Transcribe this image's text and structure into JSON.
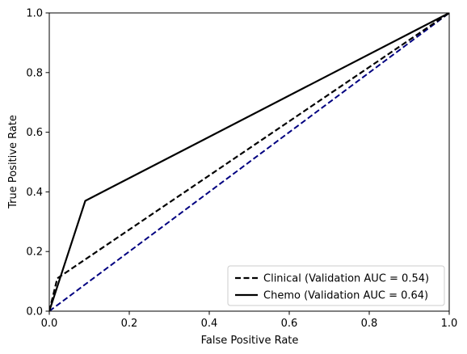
{
  "chart_data": {
    "type": "line",
    "title": "",
    "xlabel": "False Positive Rate",
    "ylabel": "True Positive Rate",
    "xlim": [
      0,
      1
    ],
    "ylim": [
      0,
      1
    ],
    "xticks": [
      "0.0",
      "0.2",
      "0.4",
      "0.6",
      "0.8",
      "1.0"
    ],
    "yticks": [
      "0.0",
      "0.2",
      "0.4",
      "0.6",
      "0.8",
      "1.0"
    ],
    "grid": false,
    "legend_position": "bottom-right",
    "series": [
      {
        "name": "Clinical (Validation AUC = 0.54)",
        "color": "#000000",
        "dash": "dashed",
        "x": [
          0,
          0.02,
          1
        ],
        "y": [
          0,
          0.11,
          1
        ]
      },
      {
        "name": "Chemo (Validation AUC = 0.64)",
        "color": "#000000",
        "dash": "solid",
        "x": [
          0,
          0.09,
          1
        ],
        "y": [
          0,
          0.37,
          1
        ]
      }
    ],
    "reference_line": {
      "color": "#000080",
      "dash": "dashed",
      "x": [
        0,
        1
      ],
      "y": [
        0,
        1
      ]
    }
  }
}
